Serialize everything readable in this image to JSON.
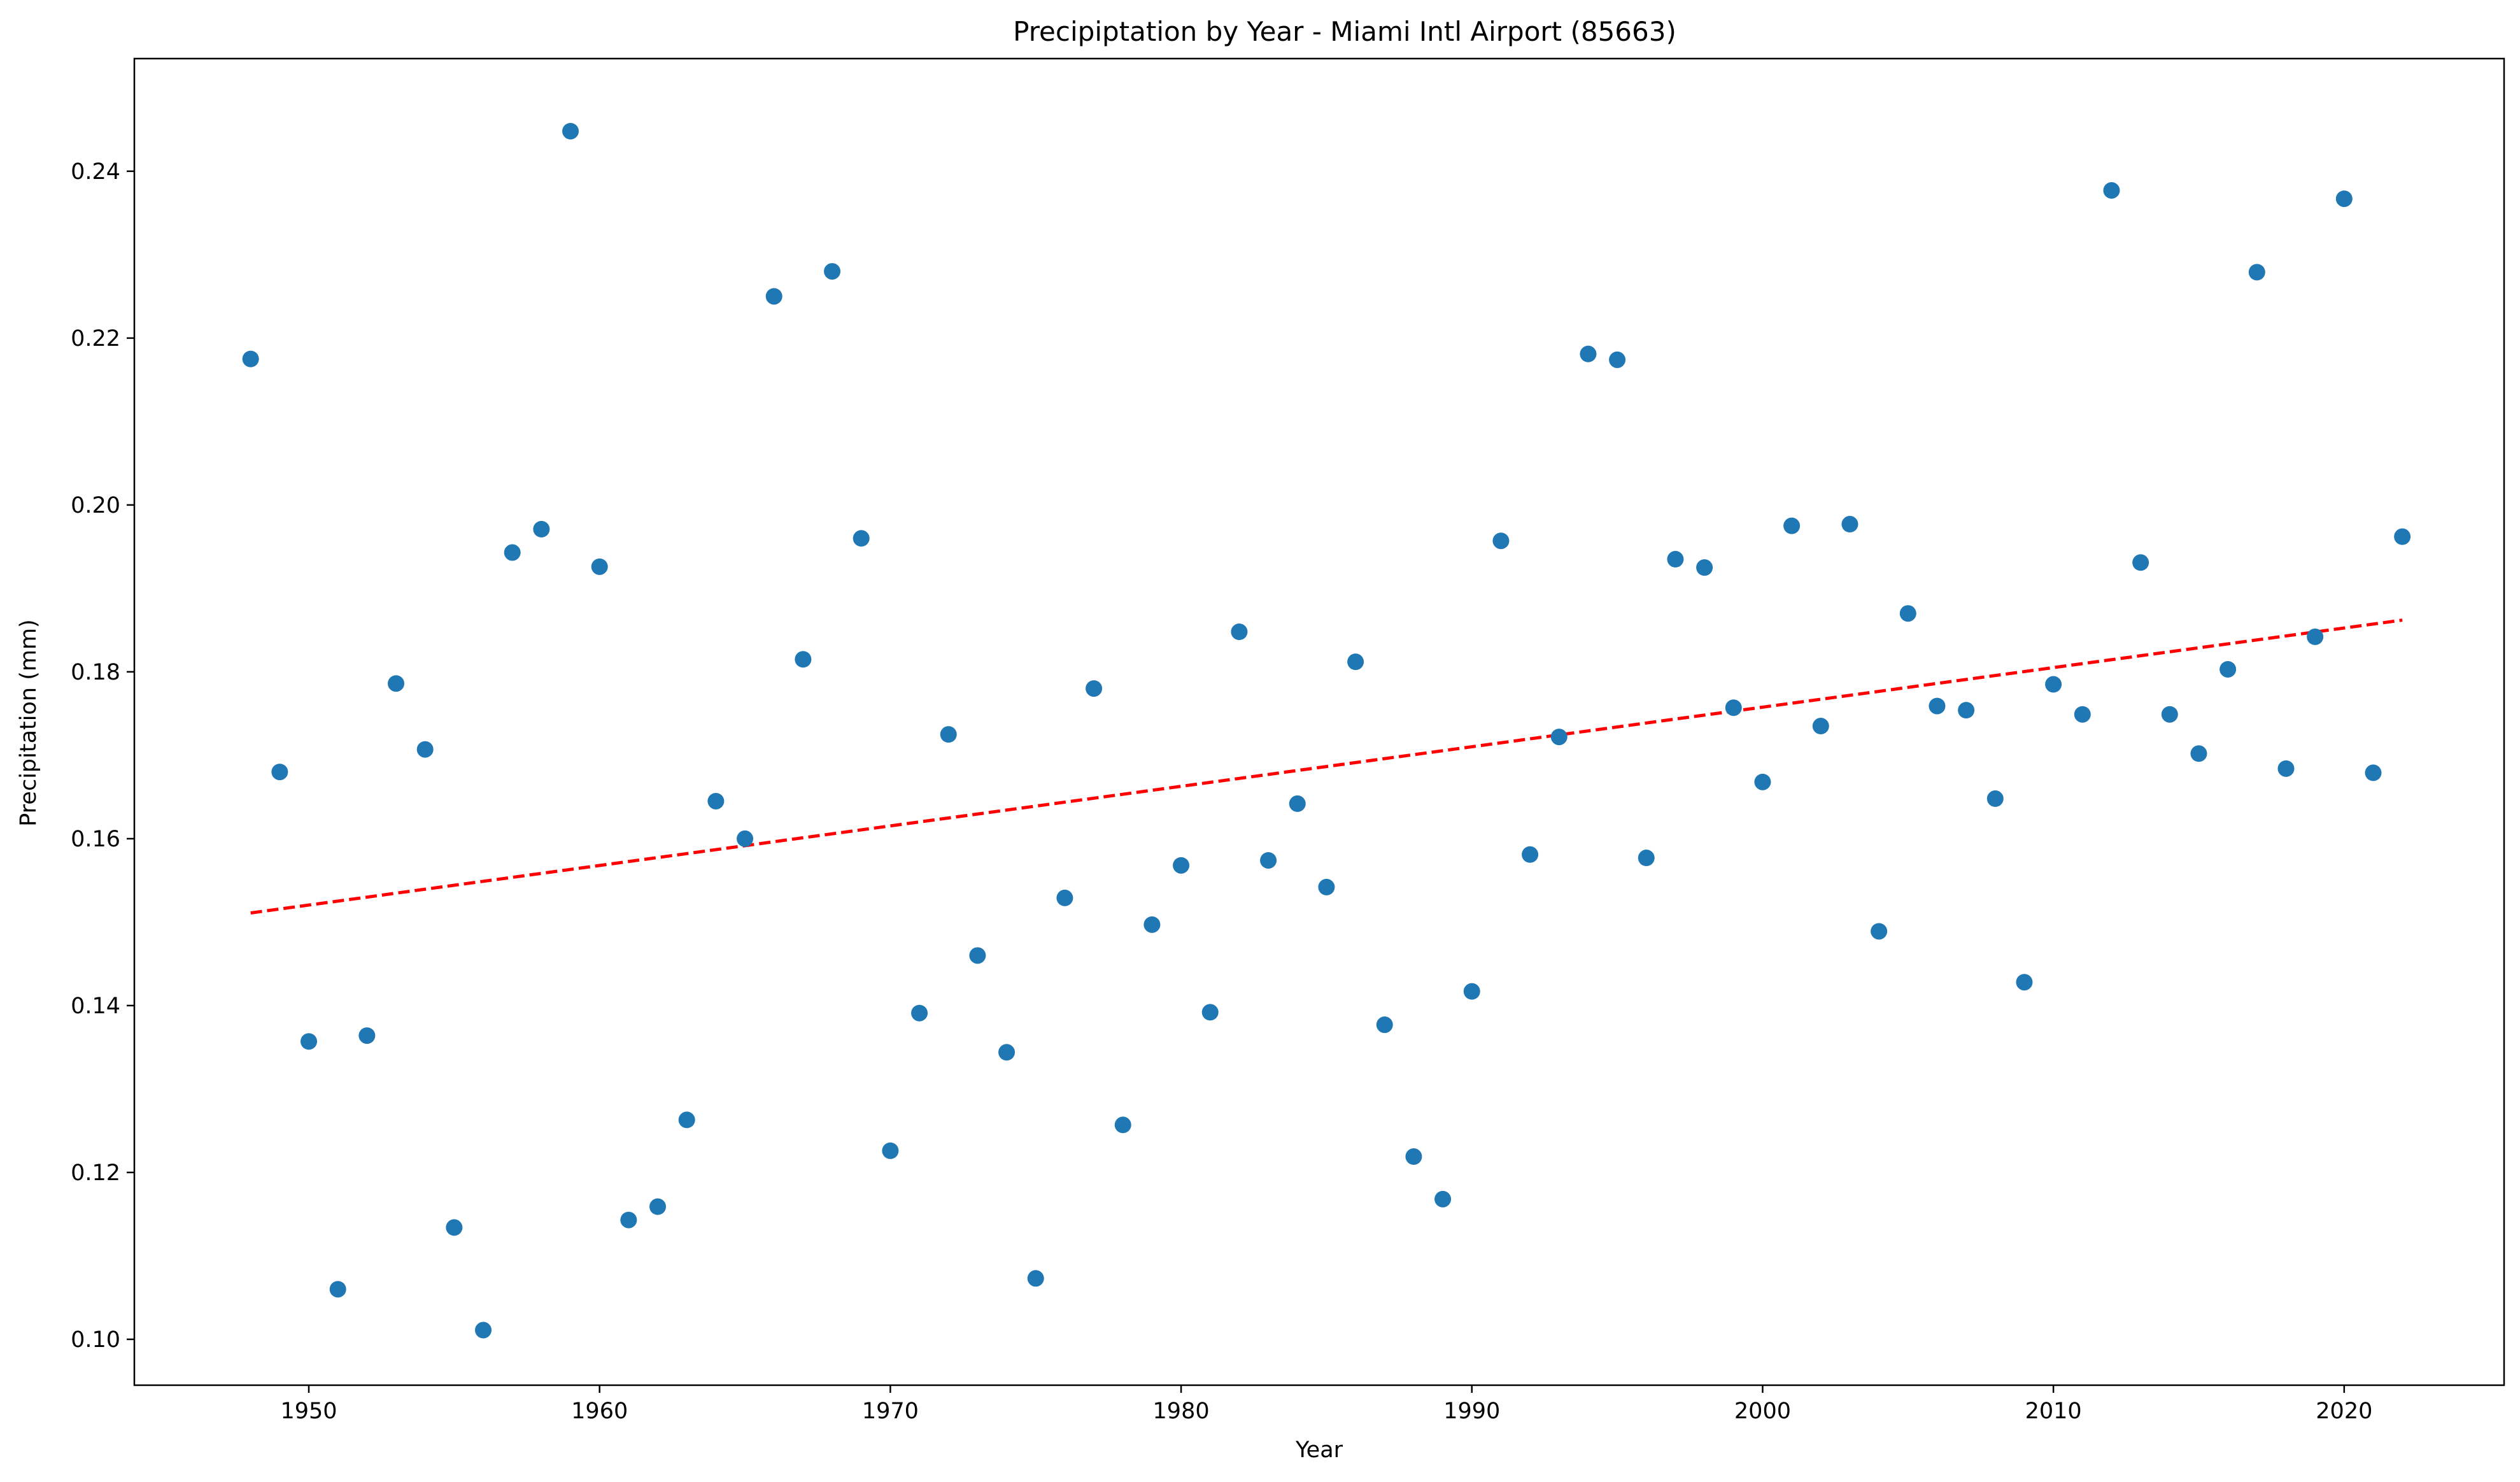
{
  "chart_data": {
    "type": "scatter",
    "title": "Precipiptation by Year - Miami Intl Airport (85663)",
    "xlabel": "Year",
    "ylabel": "Precipitation (mm)",
    "xlim": [
      1944,
      2025.5
    ],
    "ylim": [
      0.0945,
      0.2535
    ],
    "xticks": [
      1950,
      1960,
      1970,
      1980,
      1990,
      2000,
      2010,
      2020
    ],
    "yticks": [
      0.1,
      0.12,
      0.14,
      0.16,
      0.18,
      0.2,
      0.22,
      0.24
    ],
    "x_tick_labels": [
      "1950",
      "1960",
      "1970",
      "1980",
      "1990",
      "2000",
      "2010",
      "2020"
    ],
    "y_tick_labels": [
      "0.10",
      "0.12",
      "0.14",
      "0.16",
      "0.18",
      "0.20",
      "0.22",
      "0.24"
    ],
    "grid": false,
    "marker_color": "#1f77b4",
    "trend_color": "#ff0000",
    "series": [
      {
        "x": [
          1948,
          1949,
          1950,
          1951,
          1952,
          1953,
          1954,
          1955,
          1956,
          1957,
          1958,
          1959,
          1960,
          1961,
          1962,
          1963,
          1964,
          1965,
          1966,
          1967,
          1968,
          1969,
          1970,
          1971,
          1972,
          1973,
          1974,
          1975,
          1976,
          1977,
          1978,
          1979,
          1980,
          1981,
          1982,
          1983,
          1984,
          1985,
          1986,
          1987,
          1988,
          1989,
          1990,
          1991,
          1992,
          1993,
          1994,
          1995,
          1996,
          1997,
          1998,
          1999,
          2000,
          2001,
          2002,
          2003,
          2004,
          2005,
          2006,
          2007,
          2008,
          2009,
          2010,
          2011,
          2012,
          2013,
          2014,
          2015,
          2016,
          2017,
          2018,
          2019,
          2020,
          2021,
          2022
        ],
        "y": [
          0.2175,
          0.168,
          0.1357,
          0.106,
          0.1364,
          0.1786,
          0.1707,
          0.1134,
          0.1011,
          0.1943,
          0.1971,
          0.2448,
          0.1926,
          0.1143,
          0.1159,
          0.1263,
          0.1645,
          0.16,
          0.225,
          0.1815,
          0.228,
          0.196,
          0.1226,
          0.1391,
          0.1725,
          0.146,
          0.1344,
          0.1073,
          0.1529,
          0.178,
          0.1257,
          0.1497,
          0.1568,
          0.1392,
          0.1848,
          0.1574,
          0.1642,
          0.1542,
          0.1812,
          0.1377,
          0.1219,
          0.1168,
          0.1417,
          0.1957,
          0.1581,
          0.1722,
          0.2181,
          0.2174,
          0.1577,
          0.1935,
          0.1925,
          0.1757,
          0.1668,
          0.1975,
          0.1735,
          0.1977,
          0.1489,
          0.187,
          0.1759,
          0.1754,
          0.1648,
          0.1428,
          0.1785,
          0.1749,
          0.2377,
          0.1931,
          0.1749,
          0.1702,
          0.1803,
          0.2279,
          0.1684,
          0.1842,
          0.2367,
          0.1679,
          0.1962
        ]
      }
    ],
    "trendline": {
      "style": "dashed",
      "x": [
        1948,
        2022
      ],
      "y": [
        0.1511,
        0.1862
      ]
    }
  }
}
